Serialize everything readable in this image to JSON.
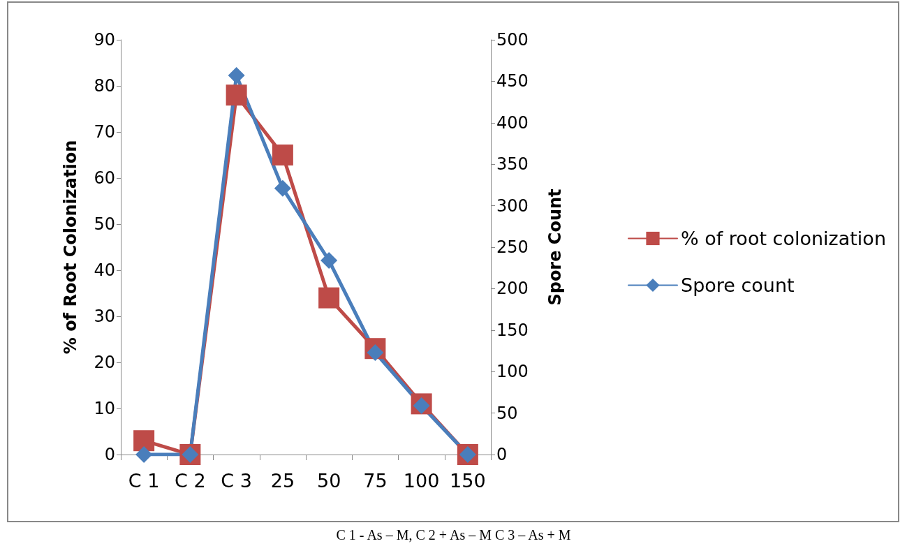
{
  "chart_data": {
    "type": "line",
    "ylabel": "% of Root Colonization",
    "y2label": "Spore Count",
    "categories": [
      "C 1",
      "C 2",
      "C 3",
      "25",
      "50",
      "75",
      "100",
      "150"
    ],
    "series": [
      {
        "name": "% of root colonization",
        "color": "#be4b48",
        "marker": "square",
        "values": [
          3,
          0,
          78,
          65,
          34,
          23,
          11,
          0
        ]
      },
      {
        "name": "Spore count",
        "color": "#4a7ebb",
        "marker": "diamond",
        "axis": "y2",
        "values": [
          0,
          0,
          457,
          321,
          234,
          123,
          59,
          0
        ]
      }
    ],
    "ylim": [
      0,
      90
    ],
    "yticks": [
      0,
      10,
      20,
      30,
      40,
      50,
      60,
      70,
      80,
      90
    ],
    "y2lim": [
      0,
      500
    ],
    "y2ticks": [
      0,
      50,
      100,
      150,
      200,
      250,
      300,
      350,
      400,
      450,
      500
    ],
    "grid": false,
    "legend": "right",
    "line_style": "solid",
    "annotations": [
      "C 1 - As – M, C 2 + As – M C 3 – As + M"
    ]
  }
}
